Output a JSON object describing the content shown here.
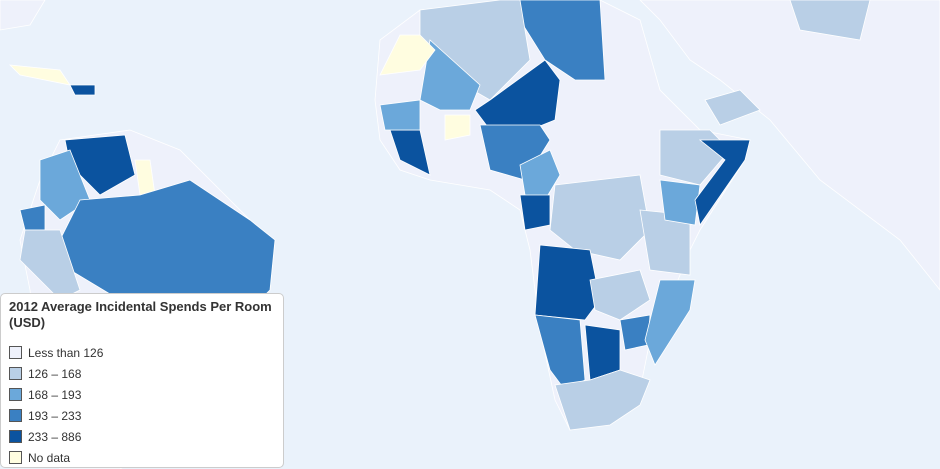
{
  "legend": {
    "title": "2012 Average Incidental Spends Per Room (USD)",
    "items": [
      {
        "label": "Less than 126",
        "color": "#eef1fb"
      },
      {
        "label": "126 – 168",
        "color": "#b9cfe6"
      },
      {
        "label": "168 – 193",
        "color": "#6ba8da"
      },
      {
        "label": "193 – 233",
        "color": "#3a80c2"
      },
      {
        "label": "233 – 886",
        "color": "#0b539f"
      },
      {
        "label": "No data",
        "color": "#fffde0"
      }
    ]
  }
}
